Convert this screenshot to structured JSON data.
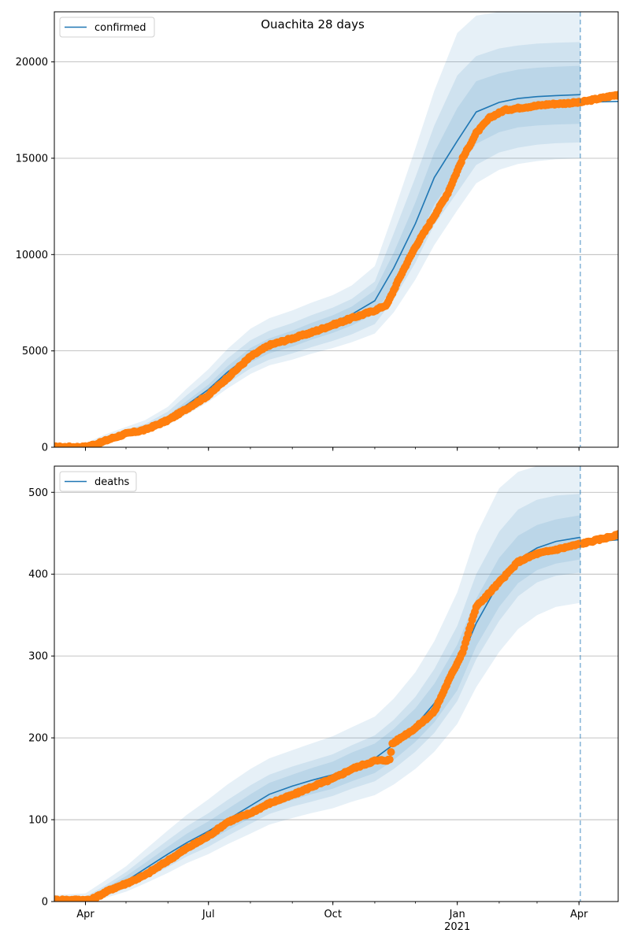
{
  "figure": {
    "title": "Ouachita 28 days"
  },
  "colors": {
    "model": "#1f77b4",
    "observed": "#ff7f0e",
    "band": "#1f77b4",
    "grid": "#b0b0b0"
  },
  "chart_data": [
    {
      "type": "line",
      "legend": "confirmed",
      "legend_position": "top-left",
      "grid": "horizontal",
      "x_type": "date",
      "xlim": [
        "2020-03-09",
        "2021-04-30"
      ],
      "ylim": [
        0,
        22600
      ],
      "yticks": [
        0,
        5000,
        10000,
        15000,
        20000
      ],
      "forecast_start": "2021-04-02",
      "model": {
        "dates": [
          "2020-03-09",
          "2020-04-01",
          "2020-04-15",
          "2020-05-01",
          "2020-05-15",
          "2020-06-01",
          "2020-06-15",
          "2020-07-01",
          "2020-07-15",
          "2020-08-01",
          "2020-08-15",
          "2020-09-01",
          "2020-09-15",
          "2020-10-01",
          "2020-10-15",
          "2020-11-01",
          "2020-11-15",
          "2020-12-01",
          "2020-12-15",
          "2021-01-01",
          "2021-01-15",
          "2021-02-01",
          "2021-02-15",
          "2021-03-01",
          "2021-03-15",
          "2021-04-02"
        ],
        "median": [
          0,
          80,
          400,
          700,
          900,
          1500,
          2200,
          3000,
          3900,
          4800,
          5300,
          5700,
          6100,
          6500,
          6900,
          7600,
          9300,
          11600,
          14000,
          15900,
          17400,
          17900,
          18100,
          18200,
          18250,
          18300
        ],
        "forecast": {
          "dates": [
            "2021-04-02",
            "2021-04-30"
          ],
          "values": [
            17900,
            17950
          ]
        },
        "bands": [
          {
            "lower": [
              0,
              50,
              300,
              550,
              700,
              1150,
              1700,
              2350,
              3050,
              3800,
              4250,
              4550,
              4850,
              5150,
              5450,
              5900,
              7000,
              8700,
              10500,
              12300,
              13700,
              14400,
              14700,
              14850,
              14950,
              15000
            ],
            "upper": [
              0,
              200,
              650,
              1050,
              1400,
              2100,
              3050,
              4050,
              5100,
              6150,
              6700,
              7100,
              7500,
              7900,
              8400,
              9400,
              12200,
              15500,
              18500,
              21500,
              22400,
              22600,
              22600,
              22600,
              22600,
              22600
            ]
          },
          {
            "lower": [
              0,
              60,
              330,
              600,
              760,
              1260,
              1870,
              2560,
              3300,
              4090,
              4550,
              4870,
              5190,
              5520,
              5860,
              6390,
              7680,
              9570,
              11550,
              13230,
              14650,
              15300,
              15550,
              15700,
              15780,
              15820
            ],
            "upper": [
              0,
              150,
              550,
              900,
              1200,
              1850,
              2700,
              3600,
              4600,
              5550,
              6050,
              6450,
              6850,
              7250,
              7700,
              8600,
              11100,
              14000,
              16700,
              19300,
              20300,
              20700,
              20850,
              20950,
              21000,
              21030
            ]
          },
          {
            "lower": [
              0,
              70,
              360,
              640,
              820,
              1370,
              2020,
              2760,
              3560,
              4400,
              4870,
              5220,
              5580,
              5940,
              6320,
              6930,
              8420,
              10430,
              12600,
              14300,
              15750,
              16350,
              16600,
              16700,
              16750,
              16790
            ],
            "upper": [
              0,
              110,
              470,
              800,
              1050,
              1650,
              2400,
              3250,
              4200,
              5150,
              5650,
              6050,
              6450,
              6850,
              7300,
              8150,
              10100,
              12700,
              15300,
              17600,
              19000,
              19400,
              19600,
              19700,
              19750,
              19800
            ]
          }
        ]
      },
      "observed_anchors": {
        "dates": [
          "2020-03-09",
          "2020-03-31",
          "2020-04-10",
          "2020-04-20",
          "2020-05-01",
          "2020-05-15",
          "2020-06-01",
          "2020-06-15",
          "2020-07-01",
          "2020-07-15",
          "2020-08-01",
          "2020-08-15",
          "2020-09-01",
          "2020-09-15",
          "2020-10-01",
          "2020-10-15",
          "2020-11-01",
          "2020-11-10",
          "2020-11-20",
          "2020-12-01",
          "2020-12-15",
          "2020-12-25",
          "2021-01-05",
          "2021-01-15",
          "2021-01-25",
          "2021-02-05",
          "2021-02-20",
          "2021-03-10",
          "2021-04-02",
          "2021-04-30"
        ],
        "values": [
          10,
          10,
          180,
          450,
          700,
          900,
          1400,
          2000,
          2700,
          3600,
          4700,
          5300,
          5650,
          5950,
          6350,
          6700,
          7100,
          7400,
          8900,
          10400,
          12000,
          13200,
          15000,
          16300,
          17100,
          17500,
          17650,
          17800,
          17900,
          18300
        ]
      }
    },
    {
      "type": "line",
      "legend": "deaths",
      "legend_position": "top-left",
      "grid": "horizontal",
      "x_type": "date",
      "xlim": [
        "2020-03-09",
        "2021-04-30"
      ],
      "ylim": [
        0,
        532
      ],
      "yticks": [
        0,
        100,
        200,
        300,
        400,
        500
      ],
      "xticks": [
        {
          "date": "2020-04-01",
          "label": "Apr",
          "sublabel": ""
        },
        {
          "date": "2020-07-01",
          "label": "Jul",
          "sublabel": ""
        },
        {
          "date": "2020-10-01",
          "label": "Oct",
          "sublabel": ""
        },
        {
          "date": "2021-01-01",
          "label": "Jan",
          "sublabel": "2021"
        },
        {
          "date": "2021-04-01",
          "label": "Apr",
          "sublabel": ""
        }
      ],
      "forecast_start": "2021-04-02",
      "model": {
        "dates": [
          "2020-03-09",
          "2020-04-01",
          "2020-04-15",
          "2020-05-01",
          "2020-05-15",
          "2020-06-01",
          "2020-06-15",
          "2020-07-01",
          "2020-07-15",
          "2020-08-01",
          "2020-08-15",
          "2020-09-01",
          "2020-09-15",
          "2020-10-01",
          "2020-10-15",
          "2020-11-01",
          "2020-11-15",
          "2020-12-01",
          "2020-12-15",
          "2021-01-01",
          "2021-01-15",
          "2021-02-01",
          "2021-02-15",
          "2021-03-01",
          "2021-03-15",
          "2021-04-02"
        ],
        "median": [
          0,
          3,
          12,
          25,
          40,
          58,
          72,
          86,
          100,
          117,
          131,
          141,
          148,
          155,
          165,
          175,
          192,
          215,
          242,
          285,
          340,
          390,
          418,
          432,
          440,
          445
        ],
        "forecast": {
          "dates": [
            "2021-04-02",
            "2021-04-30"
          ],
          "values": [
            438,
            442
          ]
        },
        "bands": [
          {
            "lower": [
              0,
              0,
              4,
              12,
              22,
              35,
              47,
              58,
              70,
              83,
              94,
              102,
              108,
              114,
              122,
              130,
              143,
              162,
              183,
              217,
              262,
              305,
              333,
              350,
              360,
              365
            ],
            "upper": [
              8,
              10,
              25,
              43,
              63,
              87,
              106,
              125,
              143,
              162,
              175,
              185,
              193,
              202,
              213,
              226,
              248,
              280,
              318,
              378,
              448,
              505,
              525,
              532,
              532,
              532
            ]
          },
          {
            "lower": [
              0,
              1,
              6,
              16,
              27,
              42,
              55,
              67,
              80,
              95,
              107,
              116,
              122,
              129,
              138,
              147,
              162,
              183,
              206,
              245,
              296,
              343,
              373,
              390,
              398,
              402
            ],
            "upper": [
              4,
              6,
              19,
              36,
              54,
              75,
              92,
              108,
              124,
              142,
              155,
              165,
              172,
              180,
              191,
              203,
              222,
              250,
              284,
              337,
              400,
              452,
              479,
              491,
              496,
              498
            ]
          },
          {
            "lower": [
              0,
              2,
              8,
              19,
              32,
              48,
              61,
              74,
              87,
              102,
              115,
              124,
              131,
              138,
              147,
              157,
              173,
              195,
              219,
              258,
              312,
              360,
              389,
              405,
              413,
              418
            ],
            "upper": [
              2,
              4,
              16,
              31,
              47,
              67,
              83,
              98,
              113,
              131,
              145,
              155,
              163,
              171,
              182,
              193,
              211,
              236,
              266,
              314,
              370,
              420,
              447,
              460,
              467,
              472
            ]
          }
        ]
      },
      "observed_anchors": {
        "dates": [
          "2020-03-09",
          "2020-04-05",
          "2020-04-20",
          "2020-05-01",
          "2020-05-15",
          "2020-06-01",
          "2020-06-15",
          "2020-07-01",
          "2020-07-15",
          "2020-08-01",
          "2020-08-15",
          "2020-09-01",
          "2020-09-15",
          "2020-10-01",
          "2020-10-15",
          "2020-11-01",
          "2020-11-12",
          "2020-11-14",
          "2020-12-01",
          "2020-12-15",
          "2020-12-25",
          "2021-01-05",
          "2021-01-15",
          "2021-02-01",
          "2021-02-15",
          "2021-03-01",
          "2021-03-15",
          "2021-04-02",
          "2021-04-15",
          "2021-04-30"
        ],
        "values": [
          2,
          2,
          15,
          22,
          32,
          50,
          65,
          80,
          97,
          108,
          120,
          130,
          140,
          150,
          162,
          172,
          173,
          193,
          212,
          232,
          268,
          305,
          360,
          390,
          415,
          425,
          430,
          437,
          442,
          448
        ]
      }
    }
  ]
}
